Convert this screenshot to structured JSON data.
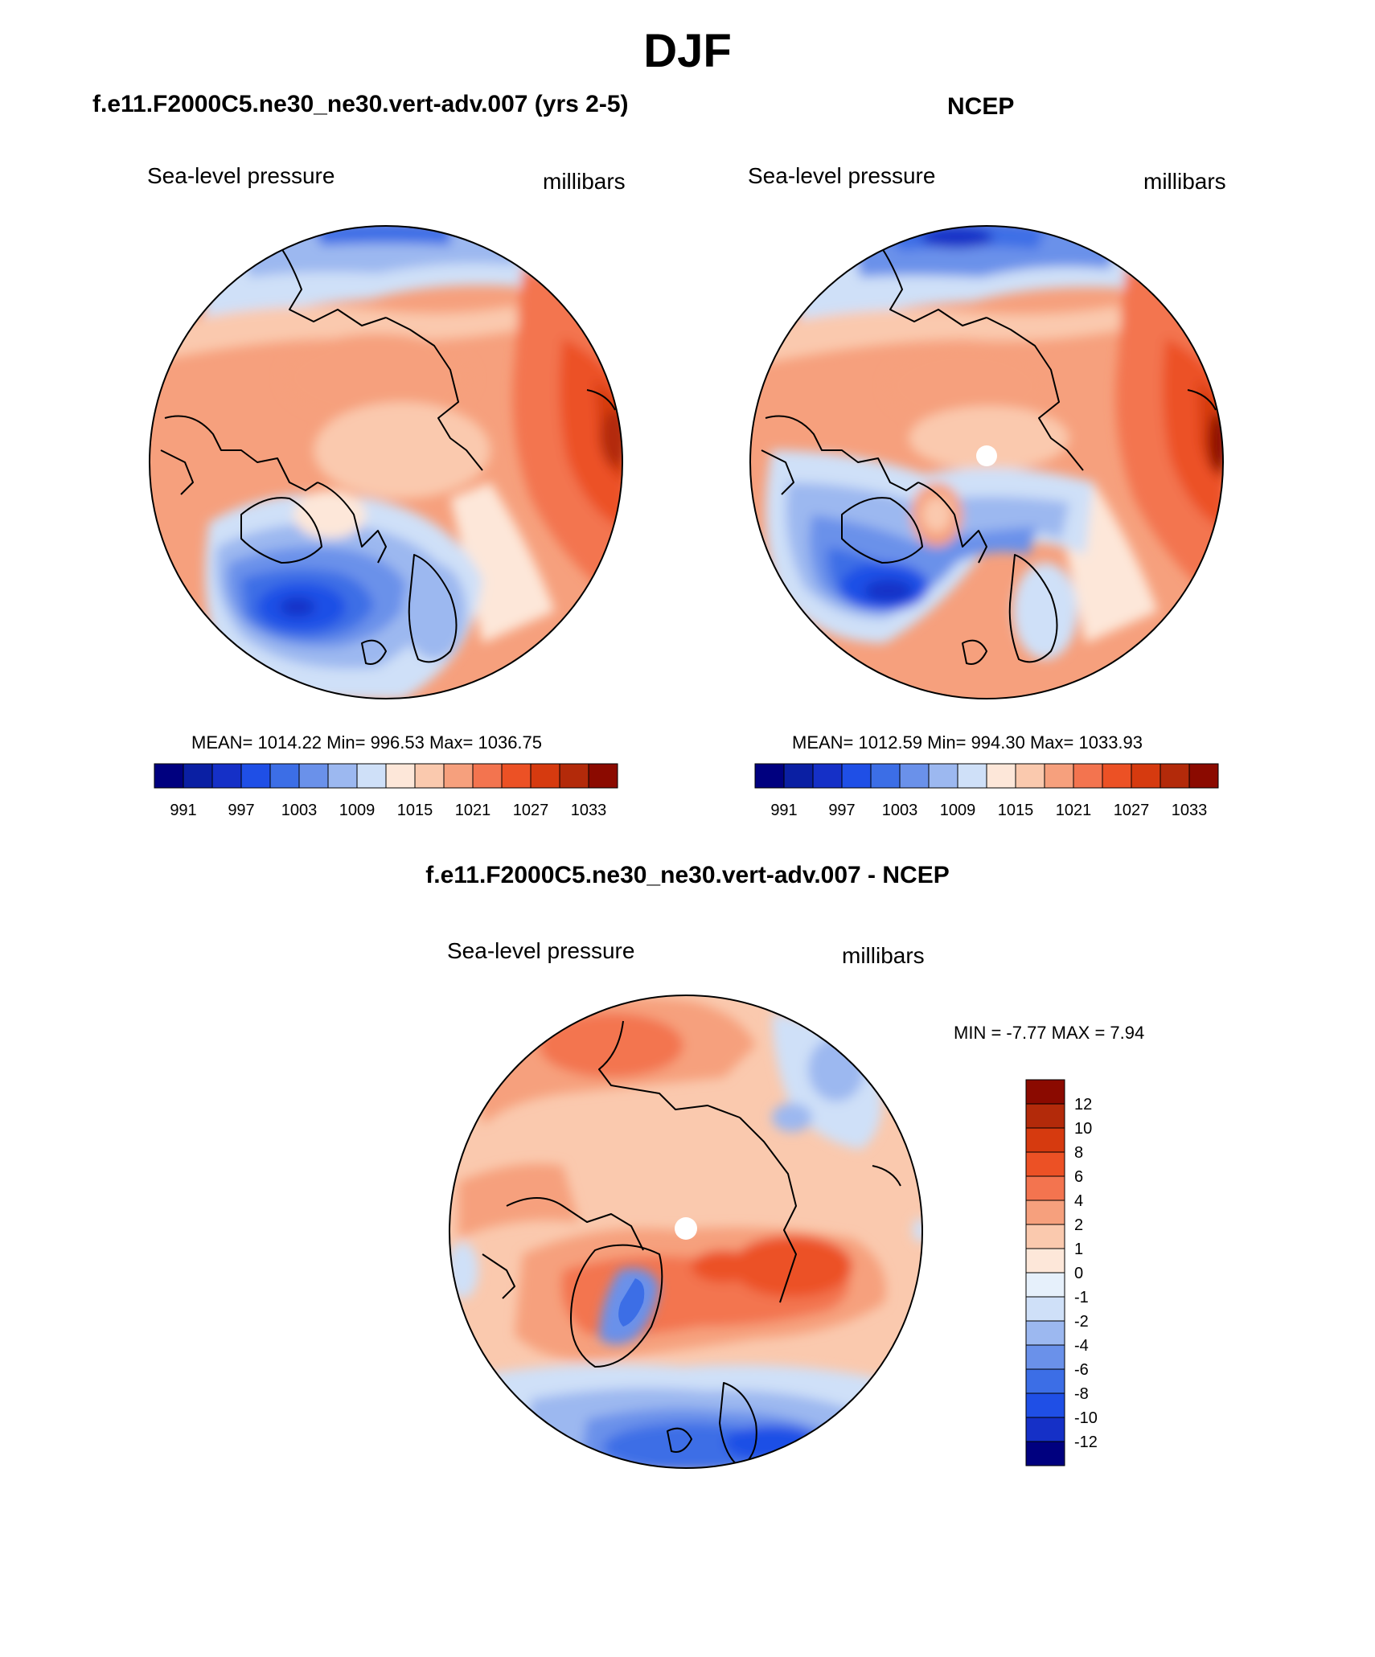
{
  "figure": {
    "title": "DJF"
  },
  "panels": [
    {
      "id": "model",
      "title": "f.e11.F2000C5.ne30_ne30.vert-adv.007 (yrs 2-5)",
      "left_label": "Sea-level pressure",
      "right_label": "millibars",
      "stats": "MEAN= 1014.22  Min= 996.53  Max= 1036.75"
    },
    {
      "id": "obs",
      "title": "NCEP",
      "left_label": "Sea-level pressure",
      "right_label": "millibars",
      "stats": "MEAN= 1012.59  Min= 994.30  Max= 1033.93"
    },
    {
      "id": "diff",
      "title": "f.e11.F2000C5.ne30_ne30.vert-adv.007 - NCEP",
      "left_label": "Sea-level pressure",
      "right_label": "millibars",
      "stats": "MIN =  -7.77 MAX =   7.94"
    }
  ],
  "chart_data": [
    {
      "type": "heatmap",
      "projection": "north polar stereographic",
      "variable": "Sea-level pressure",
      "units": "millibars",
      "colorbar_orientation": "horizontal",
      "contour_levels": [
        988,
        991,
        994,
        997,
        1000,
        1003,
        1006,
        1009,
        1012,
        1015,
        1018,
        1021,
        1024,
        1027,
        1030,
        1033
      ],
      "tick_labels": [
        "991",
        "997",
        "1003",
        "1009",
        "1015",
        "1021",
        "1027",
        "1033"
      ],
      "colors": [
        "#00007f",
        "#0a1fa3",
        "#1530c7",
        "#1f4fe6",
        "#3c6ee6",
        "#6a91ea",
        "#9cb8f0",
        "#cfe0f8",
        "#fde7d9",
        "#fac9ae",
        "#f6a07d",
        "#f3744f",
        "#ec5125",
        "#d63a0f",
        "#b32a0a",
        "#8b0a00"
      ],
      "mean": 1014.22,
      "min": 996.53,
      "max": 1036.75
    },
    {
      "type": "heatmap",
      "projection": "north polar stereographic",
      "variable": "Sea-level pressure",
      "units": "millibars",
      "colorbar_orientation": "horizontal",
      "contour_levels": [
        988,
        991,
        994,
        997,
        1000,
        1003,
        1006,
        1009,
        1012,
        1015,
        1018,
        1021,
        1024,
        1027,
        1030,
        1033
      ],
      "tick_labels": [
        "991",
        "997",
        "1003",
        "1009",
        "1015",
        "1021",
        "1027",
        "1033"
      ],
      "colors": [
        "#00007f",
        "#0a1fa3",
        "#1530c7",
        "#1f4fe6",
        "#3c6ee6",
        "#6a91ea",
        "#9cb8f0",
        "#cfe0f8",
        "#fde7d9",
        "#fac9ae",
        "#f6a07d",
        "#f3744f",
        "#ec5125",
        "#d63a0f",
        "#b32a0a",
        "#8b0a00"
      ],
      "mean": 1012.59,
      "min": 994.3,
      "max": 1033.93
    },
    {
      "type": "heatmap",
      "projection": "north polar stereographic",
      "variable": "Sea-level pressure difference",
      "units": "millibars",
      "colorbar_orientation": "vertical",
      "tick_labels": [
        "12",
        "10",
        "8",
        "6",
        "4",
        "2",
        "1",
        "0",
        "-1",
        "-2",
        "-4",
        "-6",
        "-8",
        "-10",
        "-12"
      ],
      "colors": [
        "#8b0a00",
        "#b32a0a",
        "#d63a0f",
        "#ec5125",
        "#f3744f",
        "#f6a07d",
        "#fac9ae",
        "#fde7d9",
        "#e6f0fb",
        "#cfe0f8",
        "#9cb8f0",
        "#6a91ea",
        "#3c6ee6",
        "#1f4fe6",
        "#1530c7",
        "#00007f"
      ],
      "min": -7.77,
      "max": 7.94
    }
  ]
}
